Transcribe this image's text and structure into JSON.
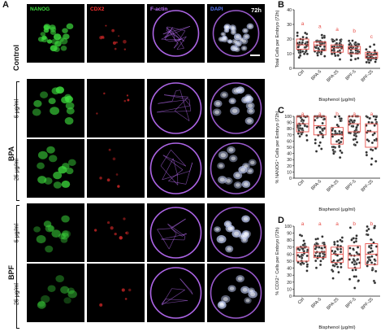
{
  "panels": {
    "A": "A",
    "B": "B",
    "C": "C",
    "D": "D"
  },
  "channels": [
    {
      "label": "NANOG",
      "color": "#3ddc3d"
    },
    {
      "label": "CDX2",
      "color": "#ff3030"
    },
    {
      "label": "F-actin",
      "color": "#c070ff"
    },
    {
      "label": "DAPI",
      "color": "#5a7cff"
    }
  ],
  "time_label": "72h",
  "rows": [
    {
      "condition": "Control",
      "dose": ""
    },
    {
      "condition": "BPA",
      "dose": "5 μg/ml"
    },
    {
      "condition": "BPA",
      "dose": "25 μg/ml"
    },
    {
      "condition": "BPF",
      "dose": "5 μg/ml"
    },
    {
      "condition": "BPF",
      "dose": "25 μg/ml"
    }
  ],
  "groups": [
    "Control",
    "BPA",
    "BPF"
  ],
  "chart_data": [
    {
      "type": "scatter",
      "title": "B",
      "ylabel": "Total Cells per Embryo (72h)",
      "xlabel": "Bisphenol (μg/ml)",
      "categories": [
        "Ctrl",
        "BPA-5",
        "BPA-25",
        "BPF-5",
        "BPF-25"
      ],
      "ylim": [
        0,
        40
      ],
      "yticks": [
        0,
        10,
        20,
        30,
        40
      ],
      "medians": [
        16,
        16,
        14,
        13,
        9
      ],
      "q1": [
        13,
        12,
        11,
        10,
        7
      ],
      "q3": [
        20,
        18,
        16,
        15,
        11
      ],
      "letters": [
        "a",
        "a",
        "a",
        "b",
        "c"
      ]
    },
    {
      "type": "scatter",
      "title": "C",
      "ylabel": "% NANOG⁺ Cells per Embryo (72h)",
      "xlabel": "Bisphenol (μg/ml)",
      "categories": [
        "Ctrl",
        "BPA-5",
        "BPA-25",
        "BPF-5",
        "BPF-25"
      ],
      "ylim": [
        0,
        100
      ],
      "yticks": [
        0,
        10,
        20,
        30,
        40,
        50,
        60,
        70,
        80,
        90,
        100
      ],
      "medians": [
        88,
        85,
        70,
        88,
        75
      ],
      "q1": [
        75,
        70,
        55,
        75,
        50
      ],
      "q3": [
        100,
        100,
        82,
        100,
        88
      ],
      "letters": [
        "a",
        "a",
        "b",
        "a",
        "a"
      ]
    },
    {
      "type": "scatter",
      "title": "D",
      "ylabel": "% CDX2⁺ Cells per Embryo (72h)",
      "xlabel": "Bisphenol (μg/ml)",
      "categories": [
        "Ctrl",
        "BPA-5",
        "BPA-25",
        "BPF-5",
        "BPF-25"
      ],
      "ylim": [
        0,
        100
      ],
      "yticks": [
        0,
        10,
        20,
        30,
        40,
        50,
        60,
        70,
        80,
        90,
        100
      ],
      "medians": [
        62,
        63,
        60,
        58,
        60
      ],
      "q1": [
        50,
        55,
        48,
        40,
        45
      ],
      "q3": [
        70,
        72,
        70,
        72,
        75
      ],
      "letters": [
        "a",
        "a",
        "a",
        "b",
        "b"
      ]
    }
  ]
}
